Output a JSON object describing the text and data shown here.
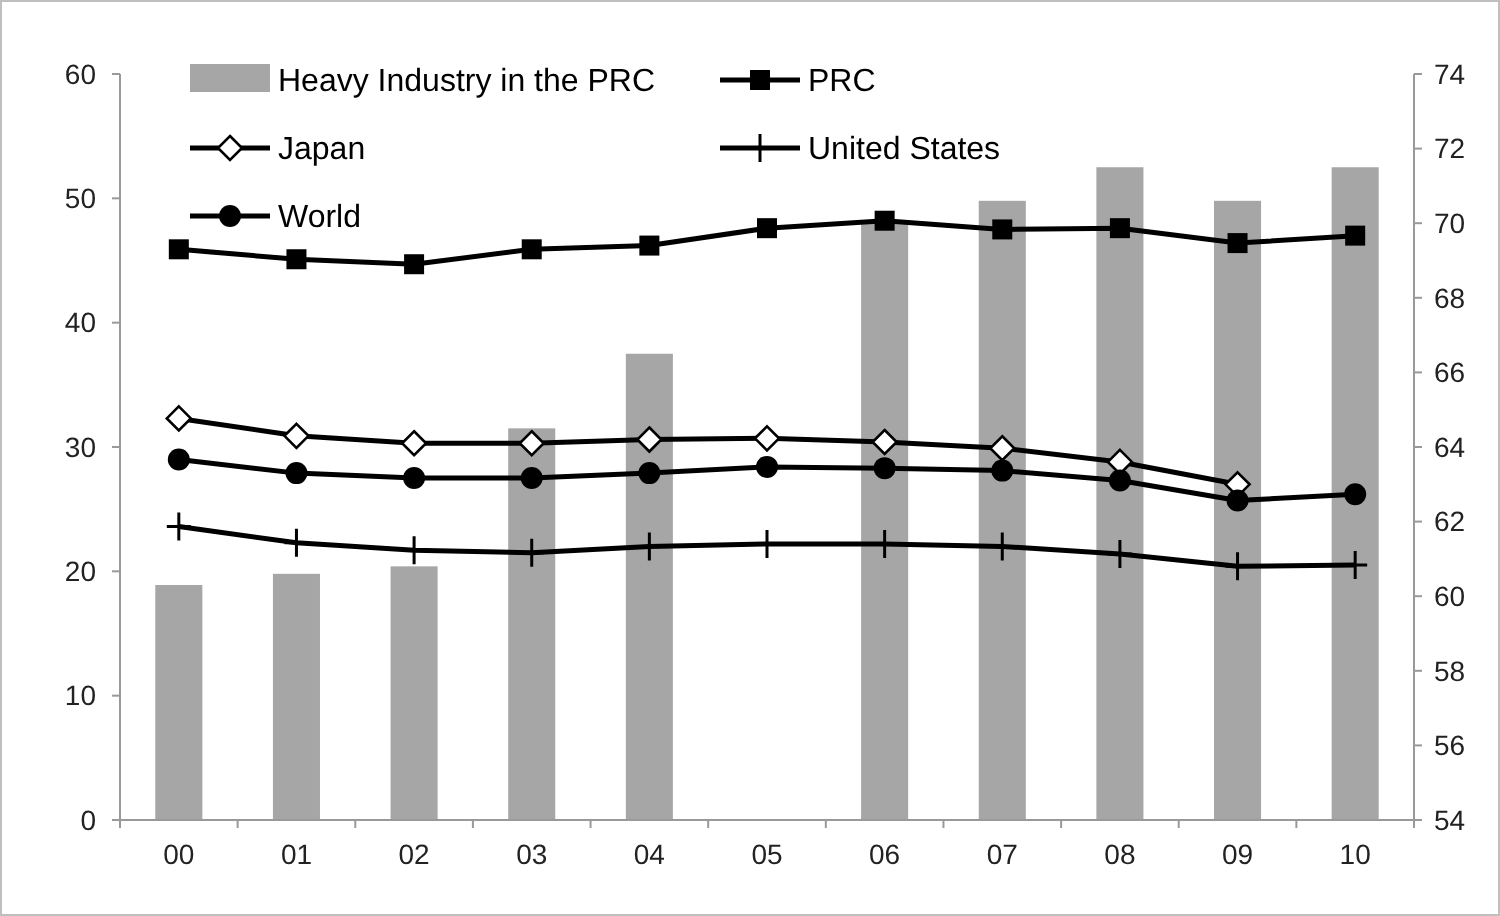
{
  "chart_data": {
    "type": "line",
    "categories": [
      "00",
      "01",
      "02",
      "03",
      "04",
      "05",
      "06",
      "07",
      "08",
      "09",
      "10"
    ],
    "series": [
      {
        "name": "Heavy Industry in the PRC",
        "type": "bar",
        "axis": "y2",
        "color": "#a6a6a6",
        "values": [
          60.3,
          60.6,
          60.8,
          64.5,
          66.5,
          null,
          70.0,
          70.6,
          71.5,
          70.6,
          71.5
        ]
      },
      {
        "name": "PRC",
        "color": "#000000",
        "marker": "square",
        "values": [
          45.9,
          45.1,
          44.7,
          45.9,
          46.2,
          47.6,
          48.2,
          47.5,
          47.6,
          46.4,
          47.0
        ]
      },
      {
        "name": "Japan",
        "color": "#000000",
        "marker": "diamond",
        "values": [
          32.3,
          30.9,
          30.3,
          30.3,
          30.6,
          30.7,
          30.4,
          29.9,
          28.8,
          27.0,
          null
        ]
      },
      {
        "name": "United States",
        "color": "#000000",
        "marker": "cross",
        "values": [
          23.6,
          22.3,
          21.7,
          21.5,
          22.0,
          22.2,
          22.2,
          22.0,
          21.4,
          20.4,
          20.5
        ]
      },
      {
        "name": "World",
        "color": "#000000",
        "marker": "circle",
        "values": [
          29.0,
          27.9,
          27.5,
          27.5,
          27.9,
          28.4,
          28.3,
          28.1,
          27.3,
          25.7,
          26.2
        ]
      }
    ],
    "ylim": [
      0,
      60
    ],
    "yticks": [
      0,
      10,
      20,
      30,
      40,
      50,
      60
    ],
    "y2lim": [
      54,
      74
    ],
    "y2ticks": [
      54,
      56,
      58,
      60,
      62,
      64,
      66,
      68,
      70,
      72,
      74
    ],
    "grid": false,
    "legend": "top",
    "line_style": "solid"
  }
}
